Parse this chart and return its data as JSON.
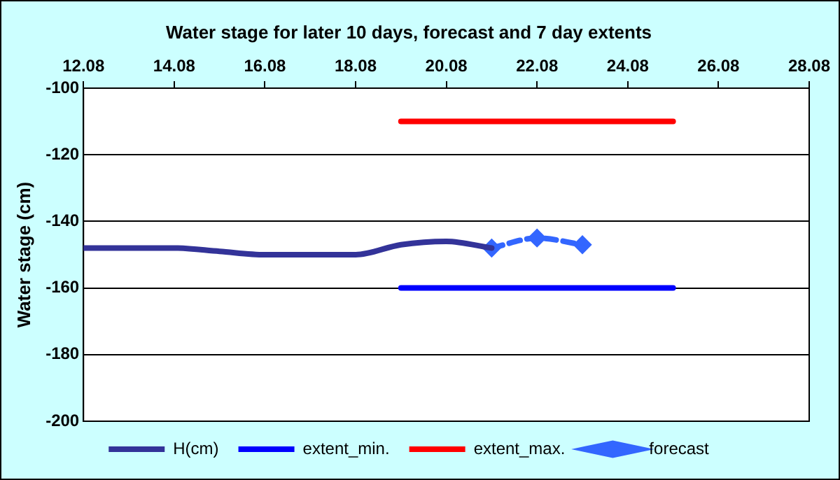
{
  "chart_data": {
    "type": "line",
    "title": "Water stage for later 10 days, forecast and 7 day extents",
    "ylabel": "Water stage (cm)",
    "xlim": [
      "--08-12",
      "--08-28"
    ],
    "xticks": [
      {
        "value": "--08-12",
        "label": "12.08"
      },
      {
        "value": "--08-14",
        "label": "14.08"
      },
      {
        "value": "--08-16",
        "label": "16.08"
      },
      {
        "value": "--08-18",
        "label": "18.08"
      },
      {
        "value": "--08-20",
        "label": "20.08"
      },
      {
        "value": "--08-22",
        "label": "22.08"
      },
      {
        "value": "--08-24",
        "label": "24.08"
      },
      {
        "value": "--08-26",
        "label": "26.08"
      },
      {
        "value": "--08-28",
        "label": "28.08"
      }
    ],
    "ylim": [
      -200,
      -100
    ],
    "yticks": [
      -200,
      -180,
      -160,
      -140,
      -120,
      -100
    ],
    "grid": "y",
    "legend": "bottom",
    "series": [
      {
        "name": "H(cm)",
        "color": "#333399",
        "x": [
          "--08-12",
          "--08-13",
          "--08-14",
          "--08-15",
          "--08-16",
          "--08-17",
          "--08-18",
          "--08-19",
          "--08-20",
          "--08-21"
        ],
        "values": [
          -148,
          -148,
          -148,
          -149,
          -150,
          -150,
          -150,
          -147,
          -146,
          -148
        ],
        "marker": "none",
        "line_style": "solid"
      },
      {
        "name": "extent_min.",
        "color": "#0000ff",
        "x": [
          "--08-19",
          "--08-25"
        ],
        "values": [
          -160,
          -160
        ],
        "marker": "none",
        "line_style": "solid"
      },
      {
        "name": "extent_max.",
        "color": "#ff0000",
        "x": [
          "--08-19",
          "--08-25"
        ],
        "values": [
          -110,
          -110
        ],
        "marker": "none",
        "line_style": "solid"
      },
      {
        "name": "forecast",
        "color": "#3366ff",
        "x": [
          "--08-21",
          "--08-22",
          "--08-23"
        ],
        "values": [
          -148,
          -145,
          -147
        ],
        "marker": "diamond",
        "line_style": "dashed"
      }
    ]
  }
}
